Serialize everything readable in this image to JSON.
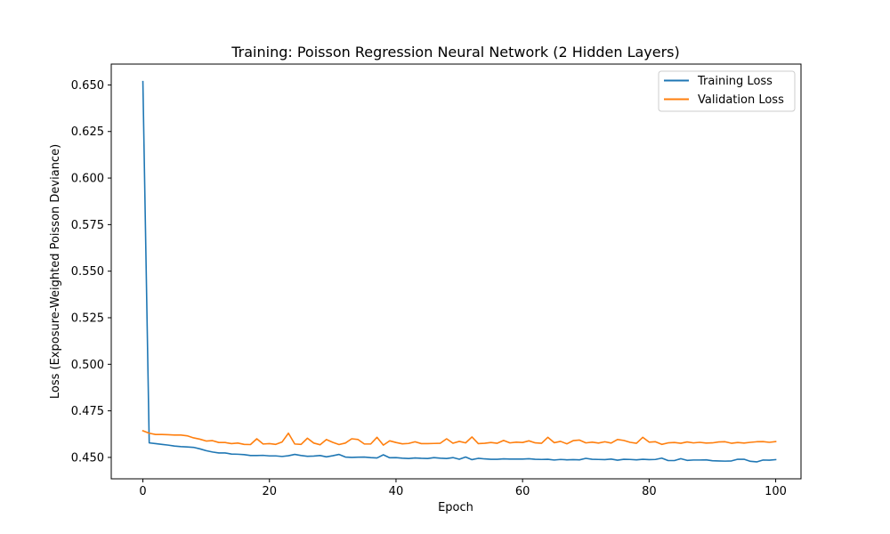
{
  "chart_data": {
    "type": "line",
    "title": "Training: Poisson Regression Neural Network (2 Hidden Layers)",
    "xlabel": "Epoch",
    "ylabel": "Loss (Exposure-Weighted Poisson Deviance)",
    "xlim": [
      -5,
      104
    ],
    "ylim": [
      0.4385,
      0.6612
    ],
    "xticks": [
      0,
      20,
      40,
      60,
      80,
      100
    ],
    "xtick_labels": [
      "0",
      "20",
      "40",
      "60",
      "80",
      "100"
    ],
    "yticks": [
      0.45,
      0.475,
      0.5,
      0.525,
      0.55,
      0.575,
      0.6,
      0.625,
      0.65
    ],
    "ytick_labels": [
      "0.450",
      "0.475",
      "0.500",
      "0.525",
      "0.550",
      "0.575",
      "0.600",
      "0.625",
      "0.650"
    ],
    "grid": false,
    "legend_position": "top-right",
    "series": [
      {
        "name": "Training Loss",
        "color": "#1f77b4",
        "values": [
          0.6518,
          0.4578,
          0.4574,
          0.457,
          0.4566,
          0.4561,
          0.4558,
          0.4556,
          0.4554,
          0.4546,
          0.4536,
          0.4529,
          0.4524,
          0.4524,
          0.4518,
          0.4517,
          0.4515,
          0.451,
          0.451,
          0.4511,
          0.4508,
          0.4508,
          0.4505,
          0.4509,
          0.4516,
          0.451,
          0.4506,
          0.4507,
          0.451,
          0.4503,
          0.4509,
          0.4516,
          0.4502,
          0.45,
          0.4501,
          0.4502,
          0.4499,
          0.4497,
          0.4514,
          0.4498,
          0.4499,
          0.4496,
          0.4494,
          0.4497,
          0.4495,
          0.4494,
          0.4499,
          0.4496,
          0.4494,
          0.4499,
          0.449,
          0.4502,
          0.4488,
          0.4495,
          0.4492,
          0.449,
          0.449,
          0.4492,
          0.4491,
          0.4491,
          0.4491,
          0.4493,
          0.449,
          0.4489,
          0.449,
          0.4486,
          0.4489,
          0.4487,
          0.4488,
          0.4487,
          0.4495,
          0.449,
          0.4489,
          0.4488,
          0.4491,
          0.4485,
          0.449,
          0.4489,
          0.4487,
          0.449,
          0.4488,
          0.4489,
          0.4496,
          0.4483,
          0.4483,
          0.4493,
          0.4484,
          0.4486,
          0.4486,
          0.4487,
          0.4482,
          0.4481,
          0.448,
          0.4481,
          0.449,
          0.449,
          0.4479,
          0.4476,
          0.4486,
          0.4485,
          0.4488
        ]
      },
      {
        "name": "Validation Loss",
        "color": "#ff7f0e",
        "values": [
          0.4643,
          0.463,
          0.4623,
          0.4623,
          0.4622,
          0.462,
          0.462,
          0.4616,
          0.4605,
          0.4598,
          0.4588,
          0.459,
          0.458,
          0.458,
          0.4574,
          0.4577,
          0.457,
          0.4569,
          0.46,
          0.4572,
          0.4574,
          0.457,
          0.4583,
          0.463,
          0.4572,
          0.457,
          0.4603,
          0.4577,
          0.4568,
          0.4596,
          0.4581,
          0.4569,
          0.4577,
          0.46,
          0.4596,
          0.4572,
          0.4572,
          0.4608,
          0.4566,
          0.4589,
          0.458,
          0.4573,
          0.4575,
          0.4584,
          0.4574,
          0.4574,
          0.4575,
          0.4576,
          0.46,
          0.4576,
          0.4586,
          0.4578,
          0.461,
          0.4574,
          0.4576,
          0.458,
          0.4576,
          0.4591,
          0.4578,
          0.4582,
          0.458,
          0.4589,
          0.4578,
          0.4576,
          0.4608,
          0.4579,
          0.4586,
          0.4573,
          0.459,
          0.4593,
          0.4578,
          0.4582,
          0.4577,
          0.4584,
          0.4577,
          0.4596,
          0.4591,
          0.4581,
          0.4576,
          0.4608,
          0.4582,
          0.4584,
          0.457,
          0.4578,
          0.458,
          0.4576,
          0.4583,
          0.4578,
          0.4581,
          0.4577,
          0.4578,
          0.4583,
          0.4584,
          0.4576,
          0.458,
          0.4577,
          0.4581,
          0.4584,
          0.4585,
          0.4581,
          0.4585
        ]
      }
    ]
  }
}
